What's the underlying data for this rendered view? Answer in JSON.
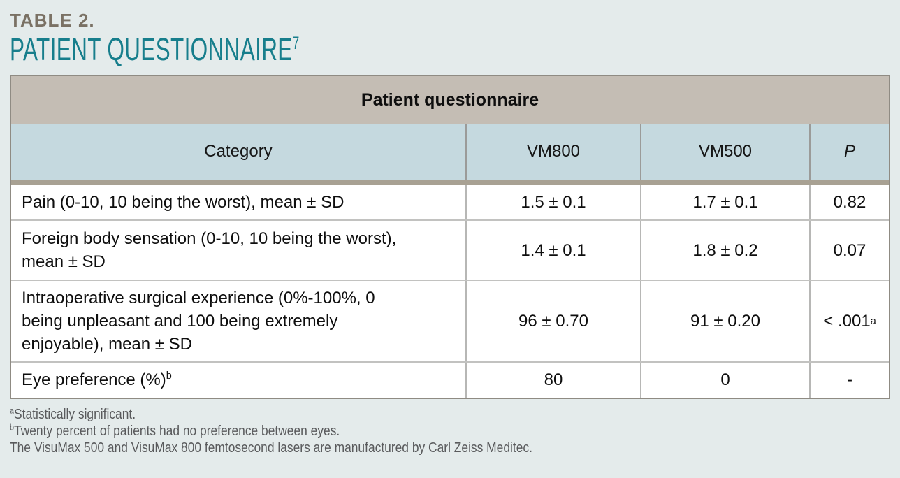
{
  "header": {
    "eyebrow": "TABLE 2.",
    "title": "PATIENT QUESTIONNAIRE",
    "title_sup": "7"
  },
  "table": {
    "caption": "Patient questionnaire",
    "columns": [
      "Category",
      "VM800",
      "VM500",
      "P"
    ],
    "rows": [
      {
        "category": "Pain (0-10, 10 being the worst), mean ± SD",
        "category_sup": "",
        "vm800": "1.5 ± 0.1",
        "vm500": "1.7 ± 0.1",
        "p": "0.82",
        "p_sup": ""
      },
      {
        "category": "Foreign body sensation (0-10, 10 being the worst), mean ± SD",
        "category_sup": "",
        "vm800": "1.4 ± 0.1",
        "vm500": "1.8 ± 0.2",
        "p": "0.07",
        "p_sup": ""
      },
      {
        "category": "Intraoperative surgical experience (0%-100%, 0 being unpleasant and 100 being extremely enjoyable), mean ± SD",
        "category_sup": "",
        "vm800": "96 ± 0.70",
        "vm500": "91 ± 0.20",
        "p": "< .001",
        "p_sup": "a"
      },
      {
        "category": "Eye preference (%)",
        "category_sup": "b",
        "vm800": "80",
        "vm500": "0",
        "p": "-",
        "p_sup": ""
      }
    ]
  },
  "footnotes": [
    {
      "sup": "a",
      "text": "Statistically significant."
    },
    {
      "sup": "b",
      "text": "Twenty percent of patients had no preference between eyes."
    },
    {
      "sup": "",
      "text": "The VisuMax 500 and VisuMax 800 femtosecond lasers are manufactured by Carl Zeiss Meditec."
    }
  ],
  "colors": {
    "accent_teal": "#177e8c",
    "eyebrow_taupe": "#7a7164",
    "caption_band": "#c4bdb4",
    "header_row": "#c5d9df",
    "separator": "#a8a193",
    "page_background": "#e4ebeb"
  }
}
